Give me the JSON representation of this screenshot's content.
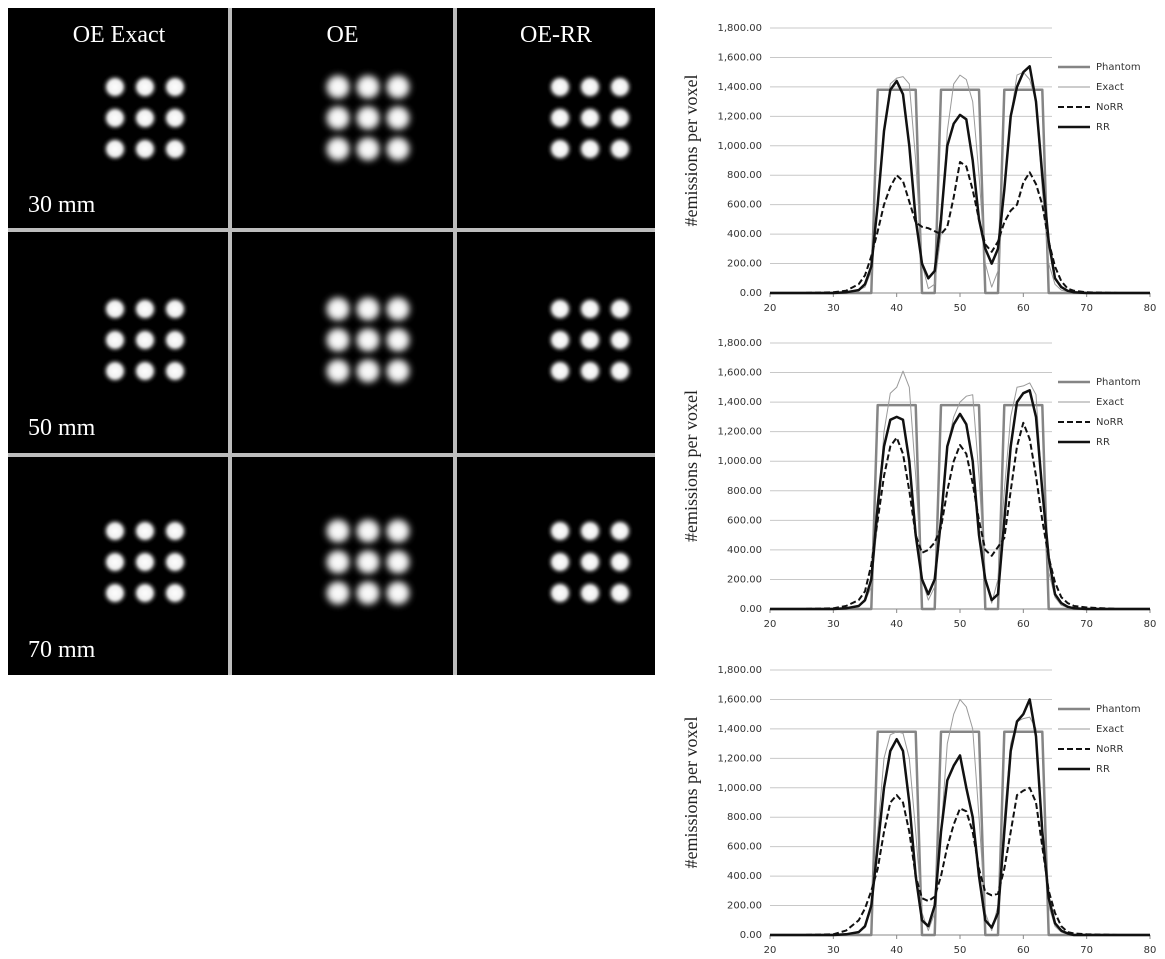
{
  "image_grid": {
    "column_titles": [
      "OE Exact",
      "OE",
      "OE-RR"
    ],
    "row_labels": [
      "30 mm",
      "50 mm",
      "70 mm"
    ]
  },
  "chart_data": [
    {
      "type": "line",
      "y_label": "#emissions per voxel",
      "legend": "right",
      "grid": true,
      "xlim": [
        20,
        80
      ],
      "ylim": [
        0,
        1800
      ],
      "xticks": [
        20,
        30,
        40,
        50,
        60,
        70,
        80
      ],
      "yticks": [
        {
          "value": 0,
          "label": "0.00"
        },
        {
          "value": 200,
          "label": "200.00"
        },
        {
          "value": 400,
          "label": "400.00"
        },
        {
          "value": 600,
          "label": "600.00"
        },
        {
          "value": 800,
          "label": "800.00"
        },
        {
          "value": 1000,
          "label": "1,000.00"
        },
        {
          "value": 1200,
          "label": "1,200.00"
        },
        {
          "value": 1400,
          "label": "1,400.00"
        },
        {
          "value": 1600,
          "label": "1,600.00"
        },
        {
          "value": 1800,
          "label": "1,800.00"
        }
      ],
      "x": [
        20,
        25,
        30,
        32,
        34,
        35,
        36,
        37,
        38,
        39,
        40,
        41,
        42,
        43,
        44,
        45,
        46,
        47,
        48,
        49,
        50,
        51,
        52,
        53,
        54,
        55,
        56,
        57,
        58,
        59,
        60,
        61,
        62,
        63,
        64,
        65,
        66,
        67,
        68,
        70,
        75,
        80
      ],
      "series": [
        {
          "name": "Phantom",
          "color": "#858585",
          "width": 2.5,
          "dash": false,
          "values": [
            0,
            0,
            0,
            0,
            0,
            0,
            0,
            1380,
            1380,
            1380,
            1380,
            1380,
            1380,
            1380,
            0,
            0,
            0,
            1380,
            1380,
            1380,
            1380,
            1380,
            1380,
            1380,
            0,
            0,
            0,
            1380,
            1380,
            1380,
            1380,
            1380,
            1380,
            1380,
            0,
            0,
            0,
            0,
            0,
            0,
            0,
            0
          ]
        },
        {
          "name": "Exact",
          "color": "#9a9a9a",
          "width": 1,
          "dash": false,
          "values": [
            0,
            0,
            0,
            5,
            20,
            40,
            150,
            600,
            1100,
            1420,
            1460,
            1470,
            1420,
            900,
            200,
            30,
            60,
            400,
            1100,
            1420,
            1480,
            1450,
            1300,
            800,
            200,
            40,
            150,
            700,
            1200,
            1480,
            1500,
            1450,
            1300,
            700,
            200,
            60,
            20,
            10,
            5,
            0,
            0,
            0
          ]
        },
        {
          "name": "NoRR",
          "color": "#111111",
          "width": 2,
          "dash": true,
          "values": [
            0,
            0,
            5,
            15,
            60,
            120,
            250,
            420,
            600,
            720,
            800,
            760,
            620,
            480,
            450,
            440,
            420,
            400,
            450,
            650,
            890,
            860,
            700,
            500,
            330,
            280,
            350,
            480,
            560,
            600,
            750,
            820,
            740,
            600,
            350,
            180,
            80,
            30,
            15,
            5,
            0,
            0
          ]
        },
        {
          "name": "RR",
          "color": "#111111",
          "width": 2.5,
          "dash": false,
          "values": [
            0,
            0,
            0,
            5,
            20,
            60,
            180,
            600,
            1100,
            1380,
            1440,
            1350,
            1000,
            500,
            200,
            100,
            150,
            500,
            1000,
            1150,
            1210,
            1180,
            900,
            500,
            300,
            200,
            300,
            700,
            1200,
            1400,
            1500,
            1540,
            1300,
            800,
            350,
            100,
            40,
            15,
            5,
            0,
            0,
            0
          ]
        }
      ]
    },
    {
      "type": "line",
      "y_label": "#emissions per voxel",
      "legend": "right",
      "grid": true,
      "xlim": [
        20,
        80
      ],
      "ylim": [
        0,
        1800
      ],
      "xticks": [
        20,
        30,
        40,
        50,
        60,
        70,
        80
      ],
      "yticks": [
        {
          "value": 0,
          "label": "0.00"
        },
        {
          "value": 200,
          "label": "200.00"
        },
        {
          "value": 400,
          "label": "400.00"
        },
        {
          "value": 600,
          "label": "600.00"
        },
        {
          "value": 800,
          "label": "800.00"
        },
        {
          "value": 1000,
          "label": "1,000.00"
        },
        {
          "value": 1200,
          "label": "1,200.00"
        },
        {
          "value": 1400,
          "label": "1,400.00"
        },
        {
          "value": 1600,
          "label": "1,600.00"
        },
        {
          "value": 1800,
          "label": "1,800.00"
        }
      ],
      "x": [
        20,
        25,
        30,
        32,
        34,
        35,
        36,
        37,
        38,
        39,
        40,
        41,
        42,
        43,
        44,
        45,
        46,
        47,
        48,
        49,
        50,
        51,
        52,
        53,
        54,
        55,
        56,
        57,
        58,
        59,
        60,
        61,
        62,
        63,
        64,
        65,
        66,
        67,
        68,
        70,
        75,
        80
      ],
      "series": [
        {
          "name": "Phantom",
          "color": "#858585",
          "width": 2.5,
          "dash": false,
          "values": [
            0,
            0,
            0,
            0,
            0,
            0,
            0,
            1380,
            1380,
            1380,
            1380,
            1380,
            1380,
            1380,
            0,
            0,
            0,
            1380,
            1380,
            1380,
            1380,
            1380,
            1380,
            1380,
            0,
            0,
            0,
            1380,
            1380,
            1380,
            1380,
            1380,
            1380,
            1380,
            0,
            0,
            0,
            0,
            0,
            0,
            0,
            0
          ]
        },
        {
          "name": "Exact",
          "color": "#9a9a9a",
          "width": 1,
          "dash": false,
          "values": [
            0,
            0,
            0,
            5,
            20,
            50,
            150,
            600,
            1200,
            1460,
            1500,
            1610,
            1500,
            900,
            200,
            60,
            150,
            600,
            1100,
            1300,
            1400,
            1440,
            1450,
            900,
            200,
            40,
            200,
            800,
            1300,
            1500,
            1510,
            1530,
            1450,
            800,
            250,
            80,
            25,
            10,
            5,
            0,
            0,
            0
          ]
        },
        {
          "name": "NoRR",
          "color": "#111111",
          "width": 2,
          "dash": true,
          "values": [
            0,
            0,
            5,
            20,
            60,
            120,
            300,
            600,
            900,
            1100,
            1160,
            1050,
            800,
            500,
            380,
            400,
            450,
            550,
            800,
            1000,
            1110,
            1050,
            850,
            600,
            400,
            360,
            420,
            480,
            800,
            1100,
            1260,
            1150,
            900,
            600,
            350,
            180,
            80,
            40,
            20,
            10,
            0,
            0
          ]
        },
        {
          "name": "RR",
          "color": "#111111",
          "width": 2.5,
          "dash": false,
          "values": [
            0,
            0,
            0,
            5,
            20,
            60,
            200,
            700,
            1100,
            1280,
            1300,
            1280,
            1000,
            500,
            200,
            100,
            200,
            600,
            1100,
            1250,
            1320,
            1250,
            1000,
            500,
            200,
            60,
            100,
            600,
            1100,
            1400,
            1460,
            1480,
            1300,
            800,
            350,
            100,
            40,
            15,
            5,
            0,
            0,
            0
          ]
        }
      ]
    },
    {
      "type": "line",
      "y_label": "#emissions per voxel",
      "legend": "right",
      "grid": true,
      "xlim": [
        20,
        80
      ],
      "ylim": [
        0,
        1800
      ],
      "xticks": [
        20,
        30,
        40,
        50,
        60,
        70,
        80
      ],
      "yticks": [
        {
          "value": 0,
          "label": "0.00"
        },
        {
          "value": 200,
          "label": "200.00"
        },
        {
          "value": 400,
          "label": "400.00"
        },
        {
          "value": 600,
          "label": "600.00"
        },
        {
          "value": 800,
          "label": "800.00"
        },
        {
          "value": 1000,
          "label": "1,000.00"
        },
        {
          "value": 1200,
          "label": "1,200.00"
        },
        {
          "value": 1400,
          "label": "1,400.00"
        },
        {
          "value": 1600,
          "label": "1,600.00"
        },
        {
          "value": 1800,
          "label": "1,800.00"
        }
      ],
      "x": [
        20,
        25,
        30,
        32,
        34,
        35,
        36,
        37,
        38,
        39,
        40,
        41,
        42,
        43,
        44,
        45,
        46,
        47,
        48,
        49,
        50,
        51,
        52,
        53,
        54,
        55,
        56,
        57,
        58,
        59,
        60,
        61,
        62,
        63,
        64,
        65,
        66,
        67,
        68,
        70,
        75,
        80
      ],
      "series": [
        {
          "name": "Phantom",
          "color": "#858585",
          "width": 2.5,
          "dash": false,
          "values": [
            0,
            0,
            0,
            0,
            0,
            0,
            0,
            1380,
            1380,
            1380,
            1380,
            1380,
            1380,
            1380,
            0,
            0,
            0,
            1380,
            1380,
            1380,
            1380,
            1380,
            1380,
            1380,
            0,
            0,
            0,
            1380,
            1380,
            1380,
            1380,
            1380,
            1380,
            1380,
            0,
            0,
            0,
            0,
            0,
            0,
            0,
            0
          ]
        },
        {
          "name": "Exact",
          "color": "#9a9a9a",
          "width": 1,
          "dash": false,
          "values": [
            0,
            0,
            0,
            5,
            20,
            50,
            200,
            700,
            1200,
            1360,
            1380,
            1370,
            1200,
            700,
            150,
            30,
            150,
            700,
            1300,
            1500,
            1600,
            1550,
            1400,
            800,
            150,
            30,
            200,
            800,
            1300,
            1450,
            1470,
            1480,
            1400,
            700,
            200,
            60,
            20,
            5,
            0,
            0,
            0,
            0
          ]
        },
        {
          "name": "NoRR",
          "color": "#111111",
          "width": 2,
          "dash": true,
          "values": [
            0,
            0,
            5,
            30,
            100,
            180,
            300,
            450,
            700,
            900,
            950,
            900,
            700,
            400,
            250,
            230,
            260,
            400,
            600,
            750,
            860,
            840,
            700,
            450,
            290,
            270,
            280,
            450,
            700,
            950,
            980,
            1000,
            900,
            600,
            300,
            150,
            60,
            20,
            10,
            5,
            0,
            0
          ]
        },
        {
          "name": "RR",
          "color": "#111111",
          "width": 2.5,
          "dash": false,
          "values": [
            0,
            0,
            0,
            5,
            20,
            60,
            200,
            600,
            1000,
            1250,
            1330,
            1250,
            900,
            400,
            100,
            60,
            200,
            700,
            1050,
            1150,
            1220,
            1000,
            800,
            400,
            100,
            50,
            150,
            700,
            1250,
            1450,
            1500,
            1600,
            1350,
            700,
            250,
            80,
            30,
            10,
            0,
            0,
            0,
            0
          ]
        }
      ]
    }
  ]
}
